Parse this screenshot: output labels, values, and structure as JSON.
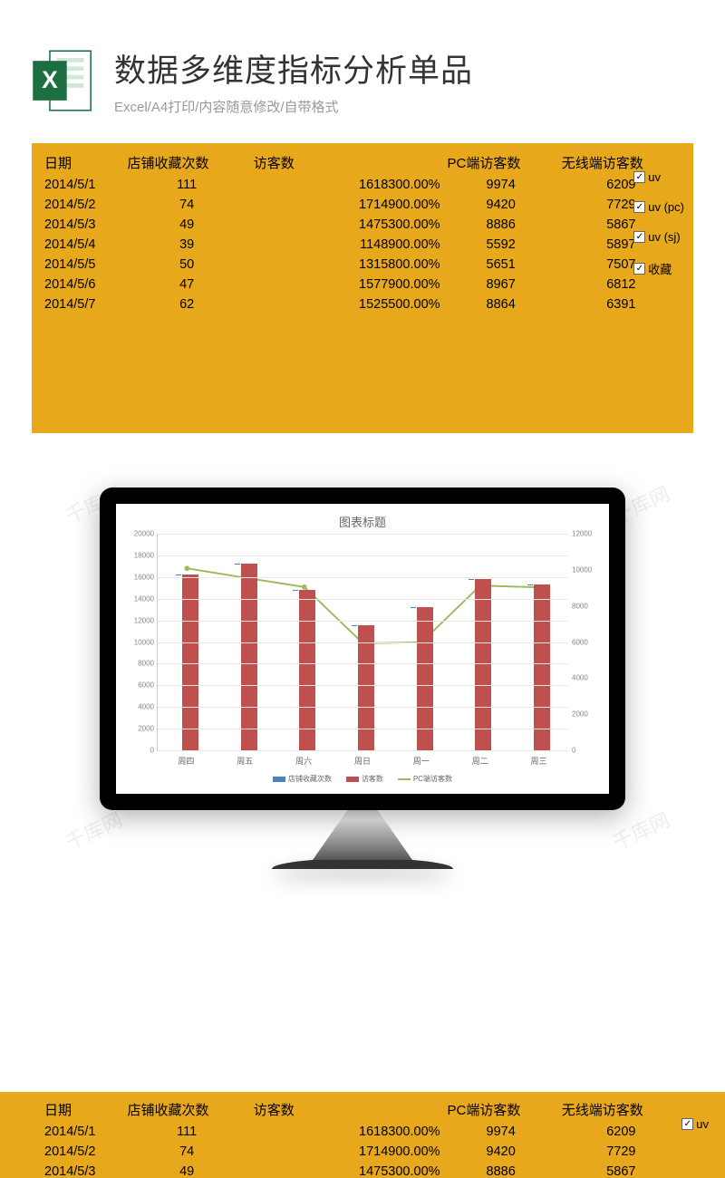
{
  "header": {
    "title": "数据多维度指标分析单品",
    "subtitle": "Excel/A4打印/内容随意修改/自带格式"
  },
  "table": {
    "columns": [
      "日期",
      "店铺收藏次数",
      "访客数",
      "",
      "PC端访客数",
      "无线端访客数"
    ],
    "rows": [
      [
        "2014/5/1",
        "111",
        "",
        "1618300.00%",
        "9974",
        "6209"
      ],
      [
        "2014/5/2",
        "74",
        "",
        "1714900.00%",
        "9420",
        "7729"
      ],
      [
        "2014/5/3",
        "49",
        "",
        "1475300.00%",
        "8886",
        "5867"
      ],
      [
        "2014/5/4",
        "39",
        "",
        "1148900.00%",
        "5592",
        "5897"
      ],
      [
        "2014/5/5",
        "50",
        "",
        "1315800.00%",
        "5651",
        "7507"
      ],
      [
        "2014/5/6",
        "47",
        "",
        "1577900.00%",
        "8967",
        "6812"
      ],
      [
        "2014/5/7",
        "62",
        "",
        "1525500.00%",
        "8864",
        "6391"
      ]
    ]
  },
  "checkboxes": [
    {
      "label": "uv",
      "checked": true
    },
    {
      "label": "uv (pc)",
      "checked": true
    },
    {
      "label": "uv (sj)",
      "checked": true
    },
    {
      "label": "收藏",
      "checked": true
    }
  ],
  "chart": {
    "title": "图表标题",
    "type": "bar+line",
    "x_categories": [
      "周四",
      "周五",
      "周六",
      "周日",
      "周一",
      "周二",
      "周三"
    ],
    "bar_series": {
      "name": "访客数",
      "color": "#c0504d",
      "values": [
        16183,
        17149,
        14753,
        11489,
        13158,
        15779,
        15255
      ]
    },
    "bar_series2": {
      "name": "店铺收藏次数",
      "color": "#4f81bd",
      "values": [
        111,
        74,
        49,
        39,
        50,
        47,
        62
      ]
    },
    "line_series": {
      "name": "PC端访客数",
      "color": "#9bbb59",
      "values": [
        9974,
        9420,
        8886,
        5592,
        5651,
        8967,
        8864
      ]
    },
    "y_left": {
      "min": 0,
      "max": 20000,
      "step": 2000
    },
    "y_right": {
      "min": 0,
      "max": 12000,
      "step": 2000
    },
    "background_color": "#ffffff",
    "grid_color": "#e8e8e8",
    "legend_items": [
      "店铺收藏次数",
      "访客数",
      "PC端访客数"
    ]
  },
  "watermark": "千库网",
  "colors": {
    "panel_bg": "#e8a81c",
    "bar_red": "#c0504d",
    "bar_blue": "#4f81bd",
    "line_green": "#9bbb59"
  }
}
